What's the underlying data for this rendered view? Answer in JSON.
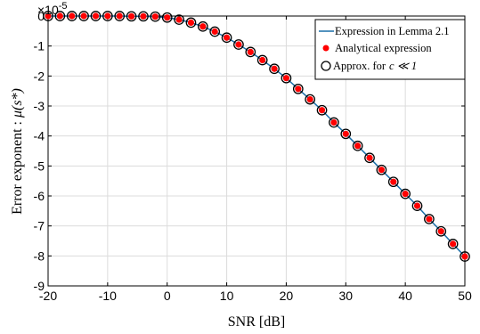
{
  "chart_data": {
    "type": "line",
    "xlabel": "SNR [dB]",
    "ylabel_prefix": "Error exponent :",
    "ylabel_math": "μ(s*)",
    "y_exponent_label": "×10",
    "y_exponent_power": "-5",
    "xlim": [
      -20,
      50
    ],
    "ylim": [
      -9,
      0
    ],
    "x_ticks": [
      -20,
      -10,
      0,
      10,
      20,
      30,
      40,
      50
    ],
    "x_tick_labels": [
      "-20",
      "-10",
      "0",
      "10",
      "20",
      "30",
      "40",
      "50"
    ],
    "y_ticks": [
      0,
      -1,
      -2,
      -3,
      -4,
      -5,
      -6,
      -7,
      -8,
      -9
    ],
    "y_tick_labels": [
      "0",
      "-1",
      "-2",
      "-3",
      "-4",
      "-5",
      "-6",
      "-7",
      "-8",
      "-9"
    ],
    "grid": true,
    "legend_position": "top-right",
    "x": [
      -20,
      -18,
      -16,
      -14,
      -12,
      -10,
      -8,
      -6,
      -4,
      -2,
      0,
      2,
      4,
      6,
      8,
      10,
      12,
      14,
      16,
      18,
      20,
      22,
      24,
      26,
      28,
      30,
      32,
      34,
      36,
      38,
      40,
      42,
      44,
      46,
      48,
      50
    ],
    "y": [
      0,
      0,
      0,
      0,
      0,
      0,
      0,
      -0.01,
      -0.01,
      -0.02,
      -0.05,
      -0.12,
      -0.22,
      -0.35,
      -0.52,
      -0.72,
      -0.95,
      -1.2,
      -1.47,
      -1.76,
      -2.07,
      -2.43,
      -2.78,
      -3.14,
      -3.55,
      -3.93,
      -4.33,
      -4.73,
      -5.13,
      -5.53,
      -5.93,
      -6.33,
      -6.77,
      -7.18,
      -7.6,
      -8.02
    ],
    "series": [
      {
        "name": "Expression in Lemma 2.1",
        "style": "line",
        "color": "#1a6fa8"
      },
      {
        "name": "Analytical expression",
        "style": "dot",
        "color": "#ff0000"
      },
      {
        "name": "Approx. for",
        "name_math": "c ≪ 1",
        "style": "circle",
        "color": "#000000"
      }
    ]
  }
}
